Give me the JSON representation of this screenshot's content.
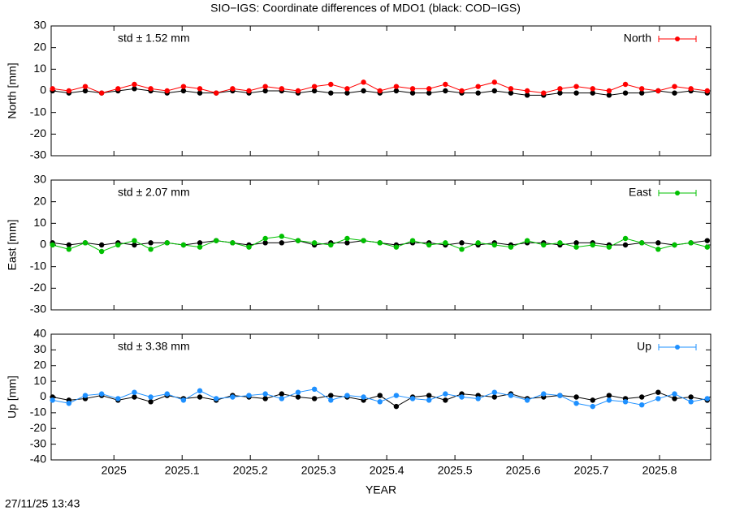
{
  "title": "SIO−IGS: Coordinate differences of MDO1 (black: COD−IGS)",
  "timestamp": "27/11/25 13:43",
  "chart_data": [
    {
      "type": "line",
      "ylabel": "North [mm]",
      "annotation": "std ± 1.52 mm",
      "xlim": [
        2024.908,
        2025.875
      ],
      "ylim": [
        -30,
        30
      ],
      "yticks": [
        -30,
        -20,
        -10,
        0,
        10,
        20,
        30
      ],
      "x": [
        2024.91,
        2024.934,
        2024.958,
        2024.982,
        2025.006,
        2025.03,
        2025.054,
        2025.078,
        2025.102,
        2025.126,
        2025.15,
        2025.174,
        2025.198,
        2025.222,
        2025.246,
        2025.27,
        2025.294,
        2025.318,
        2025.342,
        2025.366,
        2025.39,
        2025.414,
        2025.438,
        2025.462,
        2025.486,
        2025.51,
        2025.534,
        2025.558,
        2025.582,
        2025.606,
        2025.63,
        2025.654,
        2025.678,
        2025.702,
        2025.726,
        2025.75,
        2025.774,
        2025.798,
        2025.822,
        2025.846,
        2025.87
      ],
      "series": [
        {
          "name": "North",
          "color": "#ff0000",
          "values": [
            1,
            0,
            2,
            -1,
            1,
            3,
            1,
            0,
            2,
            1,
            -1,
            1,
            0,
            2,
            1,
            0,
            2,
            3,
            1,
            4,
            0,
            2,
            1,
            1,
            3,
            0,
            2,
            4,
            1,
            0,
            -1,
            1,
            2,
            1,
            0,
            3,
            1,
            0,
            2,
            1,
            0
          ]
        },
        {
          "color": "#000000",
          "values": [
            0,
            -1,
            0,
            -1,
            0,
            1,
            0,
            -1,
            0,
            -1,
            -1,
            0,
            -1,
            0,
            0,
            -1,
            0,
            -1,
            -1,
            0,
            -1,
            0,
            -1,
            -1,
            0,
            -1,
            -1,
            0,
            -1,
            -2,
            -2,
            -1,
            -1,
            -1,
            -2,
            -1,
            -1,
            0,
            -1,
            0,
            -1
          ]
        }
      ]
    },
    {
      "type": "line",
      "ylabel": "East [mm]",
      "annotation": "std ± 2.07 mm",
      "xlim": [
        2024.908,
        2025.875
      ],
      "ylim": [
        -30,
        30
      ],
      "yticks": [
        -30,
        -20,
        -10,
        0,
        10,
        20,
        30
      ],
      "x": [
        2024.91,
        2024.934,
        2024.958,
        2024.982,
        2025.006,
        2025.03,
        2025.054,
        2025.078,
        2025.102,
        2025.126,
        2025.15,
        2025.174,
        2025.198,
        2025.222,
        2025.246,
        2025.27,
        2025.294,
        2025.318,
        2025.342,
        2025.366,
        2025.39,
        2025.414,
        2025.438,
        2025.462,
        2025.486,
        2025.51,
        2025.534,
        2025.558,
        2025.582,
        2025.606,
        2025.63,
        2025.654,
        2025.678,
        2025.702,
        2025.726,
        2025.75,
        2025.774,
        2025.798,
        2025.822,
        2025.846,
        2025.87
      ],
      "series": [
        {
          "name": "East",
          "color": "#00c000",
          "values": [
            0,
            -2,
            1,
            -3,
            0,
            2,
            -2,
            1,
            0,
            -1,
            2,
            1,
            -1,
            3,
            4,
            2,
            1,
            0,
            3,
            2,
            1,
            -1,
            2,
            0,
            1,
            -2,
            1,
            0,
            -1,
            2,
            0,
            1,
            -1,
            0,
            -1,
            3,
            1,
            -2,
            0,
            1,
            -1
          ]
        },
        {
          "color": "#000000",
          "values": [
            1,
            0,
            1,
            0,
            1,
            0,
            1,
            1,
            0,
            1,
            2,
            1,
            0,
            1,
            1,
            2,
            0,
            1,
            1,
            2,
            1,
            0,
            1,
            1,
            0,
            1,
            0,
            1,
            0,
            1,
            1,
            0,
            1,
            1,
            0,
            0,
            1,
            1,
            0,
            1,
            2
          ]
        }
      ]
    },
    {
      "type": "line",
      "ylabel": "Up [mm]",
      "annotation": "std ± 3.38 mm",
      "xlabel": "YEAR",
      "xlim": [
        2024.908,
        2025.875
      ],
      "ylim": [
        -40,
        40
      ],
      "yticks": [
        -40,
        -30,
        -20,
        -10,
        0,
        10,
        20,
        30,
        40
      ],
      "xticks": [
        2025,
        2025.1,
        2025.2,
        2025.3,
        2025.4,
        2025.5,
        2025.6,
        2025.7,
        2025.8
      ],
      "x": [
        2024.91,
        2024.934,
        2024.958,
        2024.982,
        2025.006,
        2025.03,
        2025.054,
        2025.078,
        2025.102,
        2025.126,
        2025.15,
        2025.174,
        2025.198,
        2025.222,
        2025.246,
        2025.27,
        2025.294,
        2025.318,
        2025.342,
        2025.366,
        2025.39,
        2025.414,
        2025.438,
        2025.462,
        2025.486,
        2025.51,
        2025.534,
        2025.558,
        2025.582,
        2025.606,
        2025.63,
        2025.654,
        2025.678,
        2025.702,
        2025.726,
        2025.75,
        2025.774,
        2025.798,
        2025.822,
        2025.846,
        2025.87
      ],
      "series": [
        {
          "name": "Up",
          "color": "#1e90ff",
          "values": [
            -2,
            -4,
            1,
            2,
            -1,
            3,
            0,
            2,
            -2,
            4,
            -1,
            0,
            1,
            2,
            -1,
            3,
            5,
            -2,
            1,
            0,
            -3,
            1,
            -1,
            -2,
            2,
            0,
            -1,
            3,
            1,
            -2,
            2,
            1,
            -4,
            -6,
            -2,
            -3,
            -5,
            -1,
            2,
            -3,
            -1
          ]
        },
        {
          "color": "#000000",
          "values": [
            0,
            -2,
            -1,
            1,
            -2,
            0,
            -3,
            1,
            -1,
            0,
            -2,
            1,
            0,
            -1,
            2,
            0,
            -1,
            1,
            0,
            -2,
            1,
            -6,
            0,
            1,
            -2,
            2,
            1,
            0,
            2,
            -1,
            0,
            1,
            0,
            -2,
            1,
            -1,
            0,
            3,
            -1,
            0,
            -2
          ]
        }
      ]
    }
  ]
}
